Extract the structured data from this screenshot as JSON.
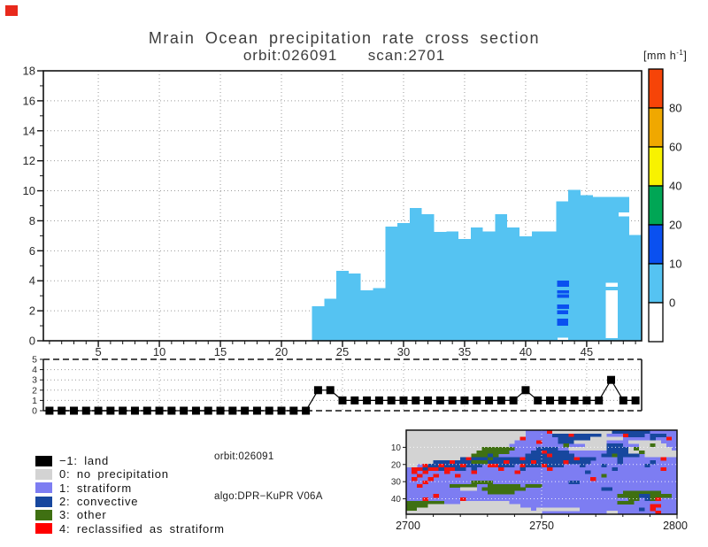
{
  "decorations": {
    "corner_marker_color": "#e8291c"
  },
  "title": {
    "line1": "Mrain Ocean precipitation rate cross section",
    "line2": "orbit:026091      scan:2701"
  },
  "colorbar": {
    "unit_prefix": "[mm h",
    "unit_sup": "-1",
    "unit_suffix": "]",
    "labels": [
      "80",
      "60",
      "40",
      "20",
      "10",
      "0"
    ],
    "colors_top_to_bottom": [
      "#f64408",
      "#f0a800",
      "#f8f200",
      "#00a655",
      "#0a50f0",
      "#55c3f2",
      "#ffffff"
    ]
  },
  "annotation": {
    "line1": "orbit:026091",
    "line2": "algo:DPR−KuPR V06A"
  },
  "legend": {
    "items": [
      {
        "label": "−1: land",
        "swatch": "#000000"
      },
      {
        "label": "0: no precipitation",
        "swatch": "#d3d3d3"
      },
      {
        "label": "1: stratiform",
        "swatch": "#7d7df2"
      },
      {
        "label": "2: convective",
        "swatch": "#17479e"
      },
      {
        "label": "3: other",
        "swatch": "#3f7012"
      },
      {
        "label": "4: reclassified as stratiform",
        "swatch": "#ff0000"
      }
    ]
  },
  "chart_data": [
    {
      "id": "cross-section",
      "type": "bar",
      "title": "Mrain Ocean precipitation rate cross section",
      "subtitle": "orbit:026091 scan:2701",
      "unit": "mm h-1",
      "xlim": [
        0.5,
        49.5
      ],
      "ylim": [
        0,
        18
      ],
      "xticks": [
        5,
        10,
        15,
        20,
        25,
        30,
        35,
        40,
        45
      ],
      "yticks": [
        0,
        2,
        4,
        6,
        8,
        10,
        12,
        14,
        16,
        18
      ],
      "grid": true,
      "fill_color": "#55c3f2",
      "bin_start_x": 1,
      "echo_top_heights_km": [
        0,
        0,
        0,
        0,
        0,
        0,
        0,
        0,
        0,
        0,
        0,
        0,
        0,
        0,
        0,
        0,
        0,
        0,
        0,
        0,
        0,
        0,
        2.3,
        2.8,
        4.65,
        4.5,
        3.35,
        3.5,
        7.6,
        7.85,
        8.85,
        8.45,
        7.25,
        7.3,
        6.8,
        7.55,
        7.3,
        8.45,
        7.55,
        6.95,
        7.3,
        7.3,
        9.3,
        10.05,
        9.7,
        9.6,
        9.6,
        9.6,
        7.05
      ],
      "convective_cells_color": "#0a50f0",
      "convective_cells": [
        [
          42.57,
          43.57,
          3.6,
          4.0
        ],
        [
          42.57,
          43.57,
          3.15,
          3.35
        ],
        [
          42.57,
          43.57,
          2.85,
          3.09
        ],
        [
          42.57,
          43.57,
          2.11,
          2.42
        ],
        [
          42.57,
          43.5,
          1.77,
          2.03
        ],
        [
          42.57,
          43.5,
          0.99,
          1.48
        ]
      ],
      "white_gaps": [
        [
          46.55,
          47.55,
          0.19,
          3.35
        ],
        [
          46.55,
          47.55,
          3.6,
          3.88
        ],
        [
          47.6,
          48.7,
          8.3,
          8.55
        ],
        [
          42.6,
          43.5,
          0.05,
          0.22
        ]
      ]
    },
    {
      "id": "rain-type-flag",
      "type": "line",
      "marker": "square",
      "xlim": [
        0.5,
        49.5
      ],
      "ylim": [
        0,
        5
      ],
      "yticks": [
        0,
        1,
        2,
        3,
        4,
        5
      ],
      "xticks": [
        5,
        10,
        15,
        20,
        25,
        30,
        35,
        40,
        45
      ],
      "values": [
        0,
        0,
        0,
        0,
        0,
        0,
        0,
        0,
        0,
        0,
        0,
        0,
        0,
        0,
        0,
        0,
        0,
        0,
        0,
        0,
        0,
        0,
        2,
        2,
        1,
        1,
        1,
        1,
        1,
        1,
        1,
        1,
        1,
        1,
        1,
        1,
        1,
        1,
        1,
        2,
        1,
        1,
        1,
        1,
        1,
        1,
        3,
        1,
        1
      ]
    },
    {
      "id": "classification-map",
      "type": "heatmap",
      "x_range": [
        2700,
        2800
      ],
      "y_range": [
        1,
        49
      ],
      "xtick_labels": [
        "2700",
        "2750",
        "2800"
      ],
      "ytick_labels": [
        "10",
        "20",
        "30",
        "40"
      ],
      "palette": {
        ".": "#7d7df2",
        "g": "#d3d3d3",
        "c": "#17479e",
        "o": "#3f7012",
        "r": "#f5120e"
      },
      "rows": [
        "gggggggggggggggggggggg....rgggggggggggccccccc.....",
        "gggggggggggggggggggggg.....cccrcccccg...rccc.ccc..",
        "gggggggggggggggggggggr......ccccccgggggg.....c..r.",
        "gggggggggggggggggggg....r...cccgggggg....gggggg...",
        "ggggggggggggggggggg..........o...ggggccc...ggogg..",
        "ggggggggggggggoooooo....cccc..gggggggccccgogggggg.",
        "gggggggggggggoooooo....ccrcccc.......ccccggogggggg",
        "ggggggggggggoooco.....ccccrcccc.....ccocccc.gggggg",
        "ggggggggggcrcccocccccrcccccccccrccc....c.......r..",
        "gggggcccrcccooocccrccccrcccccrcccc.....c.....c....",
        "gg.rccrcccrccc.rrccc.rcccrccc...c...c.......c.....",
        ".rrcrrcrrcc.c....r...c....r...........c........r..",
        ".r.r...r....r.......r............c................",
        "..r..r...r..........................o.............",
        ".r..r.............................r...............",
        "...r........oooo..............cc..................",
        "..r.....ooooo..oooooo.ooo.........................",
        "..........ggg.oooooooo..............cc............",
        "...............ooooo....................ooooooo...",
        ".....r.................................ooooccoooo.",
        "...r......r..............................oo.cor...",
        "ooooooo...ggggggggg....................ooo........",
        "ooooggggggggggggggggg........................rr...",
        "ooggggggggggggggggggggg.gggggggg...........c.r....",
        "ggggggggggggggggggggggggg............gg.......r..."
      ]
    }
  ]
}
